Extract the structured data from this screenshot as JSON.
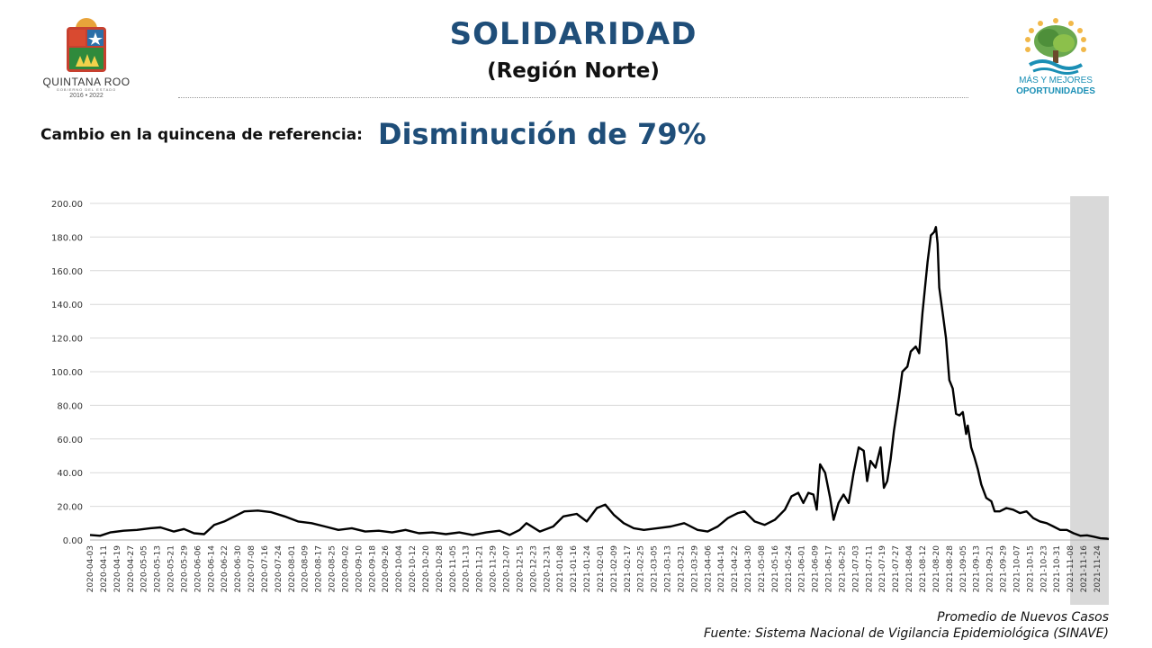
{
  "header": {
    "title": "SOLIDARIDAD",
    "subtitle": "(Región Norte)",
    "change_label": "Cambio en la quincena de referencia:",
    "change_value": "Disminución de 79%"
  },
  "logos": {
    "left": {
      "name": "QUINTANA ROO",
      "sub": "GOBIERNO DEL ESTADO",
      "years": "2016 • 2022"
    },
    "right": {
      "line1": "MÁS Y MEJORES",
      "line2": "OPORTUNIDADES"
    }
  },
  "footer": {
    "series_caption": "Promedio de Nuevos Casos",
    "source": "Fuente: Sistema Nacional de Vigilancia Epidemiológica (SINAVE)"
  },
  "colors": {
    "title": "#1f4e79",
    "line": "#000000",
    "shade": "#d9d9d9",
    "grid": "#d9d9d9"
  },
  "chart_data": {
    "type": "line",
    "ylim": [
      0,
      200
    ],
    "yticks": [
      "200.00",
      "180.00",
      "160.00",
      "140.00",
      "120.00",
      "100.00",
      "80.00",
      "60.00",
      "40.00",
      "20.00",
      "0.00"
    ],
    "xlim": [
      "2020-04-03",
      "2021-12-01"
    ],
    "shaded_from": "2021-11-08",
    "xticks": [
      "2020-04-03",
      "2020-04-11",
      "2020-04-19",
      "2020-04-27",
      "2020-05-05",
      "2020-05-13",
      "2020-05-21",
      "2020-05-29",
      "2020-06-06",
      "2020-06-14",
      "2020-06-22",
      "2020-06-30",
      "2020-07-08",
      "2020-07-16",
      "2020-07-24",
      "2020-08-01",
      "2020-08-09",
      "2020-08-17",
      "2020-08-25",
      "2020-09-02",
      "2020-09-10",
      "2020-09-18",
      "2020-09-26",
      "2020-10-04",
      "2020-10-12",
      "2020-10-20",
      "2020-10-28",
      "2020-11-05",
      "2020-11-13",
      "2020-11-21",
      "2020-11-29",
      "2020-12-07",
      "2020-12-15",
      "2020-12-23",
      "2020-12-31",
      "2021-01-08",
      "2021-01-16",
      "2021-01-24",
      "2021-02-01",
      "2021-02-09",
      "2021-02-17",
      "2021-02-25",
      "2021-03-05",
      "2021-03-13",
      "2021-03-21",
      "2021-03-29",
      "2021-04-06",
      "2021-04-14",
      "2021-04-22",
      "2021-04-30",
      "2021-05-08",
      "2021-05-16",
      "2021-05-24",
      "2021-06-01",
      "2021-06-09",
      "2021-06-17",
      "2021-06-25",
      "2021-07-03",
      "2021-07-11",
      "2021-07-19",
      "2021-07-27",
      "2021-08-04",
      "2021-08-12",
      "2021-08-20",
      "2021-08-28",
      "2021-09-05",
      "2021-09-13",
      "2021-09-21",
      "2021-09-29",
      "2021-10-07",
      "2021-10-15",
      "2021-10-23",
      "2021-10-31",
      "2021-11-08",
      "2021-11-16",
      "2021-11-24"
    ],
    "series": [
      {
        "name": "Promedio de Nuevos Casos",
        "points": [
          [
            "2020-04-03",
            3
          ],
          [
            "2020-04-09",
            2.5
          ],
          [
            "2020-04-15",
            4.5
          ],
          [
            "2020-04-23",
            5.5
          ],
          [
            "2020-05-01",
            6
          ],
          [
            "2020-05-09",
            7
          ],
          [
            "2020-05-15",
            7.5
          ],
          [
            "2020-05-23",
            5
          ],
          [
            "2020-05-29",
            6.5
          ],
          [
            "2020-06-04",
            4
          ],
          [
            "2020-06-10",
            3.5
          ],
          [
            "2020-06-16",
            9
          ],
          [
            "2020-06-22",
            11
          ],
          [
            "2020-06-28",
            14
          ],
          [
            "2020-07-04",
            17
          ],
          [
            "2020-07-12",
            17.5
          ],
          [
            "2020-07-20",
            16.5
          ],
          [
            "2020-07-28",
            14
          ],
          [
            "2020-08-05",
            11
          ],
          [
            "2020-08-13",
            10
          ],
          [
            "2020-08-21",
            8
          ],
          [
            "2020-08-29",
            6
          ],
          [
            "2020-09-06",
            7
          ],
          [
            "2020-09-14",
            5
          ],
          [
            "2020-09-22",
            5.5
          ],
          [
            "2020-09-30",
            4.5
          ],
          [
            "2020-10-08",
            6
          ],
          [
            "2020-10-16",
            4
          ],
          [
            "2020-10-24",
            4.5
          ],
          [
            "2020-11-01",
            3.5
          ],
          [
            "2020-11-09",
            4.5
          ],
          [
            "2020-11-17",
            3
          ],
          [
            "2020-11-25",
            4.5
          ],
          [
            "2020-12-03",
            5.5
          ],
          [
            "2020-12-09",
            3
          ],
          [
            "2020-12-15",
            6
          ],
          [
            "2020-12-19",
            10
          ],
          [
            "2020-12-27",
            5
          ],
          [
            "2021-01-04",
            8
          ],
          [
            "2021-01-10",
            14
          ],
          [
            "2021-01-18",
            15.5
          ],
          [
            "2021-01-24",
            11
          ],
          [
            "2021-01-30",
            19
          ],
          [
            "2021-02-04",
            21
          ],
          [
            "2021-02-09",
            15
          ],
          [
            "2021-02-15",
            10
          ],
          [
            "2021-02-21",
            7
          ],
          [
            "2021-02-27",
            6
          ],
          [
            "2021-03-07",
            7
          ],
          [
            "2021-03-15",
            8
          ],
          [
            "2021-03-23",
            10
          ],
          [
            "2021-03-31",
            6
          ],
          [
            "2021-04-06",
            5
          ],
          [
            "2021-04-12",
            8
          ],
          [
            "2021-04-18",
            13
          ],
          [
            "2021-04-24",
            16
          ],
          [
            "2021-04-28",
            17
          ],
          [
            "2021-05-04",
            11
          ],
          [
            "2021-05-10",
            9
          ],
          [
            "2021-05-16",
            12
          ],
          [
            "2021-05-22",
            18
          ],
          [
            "2021-05-26",
            26
          ],
          [
            "2021-05-30",
            28
          ],
          [
            "2021-06-02",
            22
          ],
          [
            "2021-06-05",
            28
          ],
          [
            "2021-06-08",
            27
          ],
          [
            "2021-06-10",
            18
          ],
          [
            "2021-06-12",
            45
          ],
          [
            "2021-06-15",
            40
          ],
          [
            "2021-06-18",
            25
          ],
          [
            "2021-06-20",
            12
          ],
          [
            "2021-06-23",
            22
          ],
          [
            "2021-06-26",
            27
          ],
          [
            "2021-06-29",
            22
          ],
          [
            "2021-07-02",
            40
          ],
          [
            "2021-07-05",
            55
          ],
          [
            "2021-07-08",
            53
          ],
          [
            "2021-07-10",
            35
          ],
          [
            "2021-07-12",
            47
          ],
          [
            "2021-07-15",
            43
          ],
          [
            "2021-07-18",
            55
          ],
          [
            "2021-07-20",
            31
          ],
          [
            "2021-07-22",
            35
          ],
          [
            "2021-07-24",
            48
          ],
          [
            "2021-07-26",
            65
          ],
          [
            "2021-07-29",
            85
          ],
          [
            "2021-07-31",
            100
          ],
          [
            "2021-08-03",
            103
          ],
          [
            "2021-08-05",
            112
          ],
          [
            "2021-08-08",
            115
          ],
          [
            "2021-08-10",
            111
          ],
          [
            "2021-08-12",
            135
          ],
          [
            "2021-08-15",
            165
          ],
          [
            "2021-08-17",
            181
          ],
          [
            "2021-08-19",
            183
          ],
          [
            "2021-08-20",
            186
          ],
          [
            "2021-08-21",
            176
          ],
          [
            "2021-08-22",
            150
          ],
          [
            "2021-08-24",
            135
          ],
          [
            "2021-08-26",
            120
          ],
          [
            "2021-08-28",
            95
          ],
          [
            "2021-08-30",
            90
          ],
          [
            "2021-09-01",
            75
          ],
          [
            "2021-09-03",
            74
          ],
          [
            "2021-09-05",
            76
          ],
          [
            "2021-09-07",
            63
          ],
          [
            "2021-09-08",
            68
          ],
          [
            "2021-09-10",
            55
          ],
          [
            "2021-09-12",
            49
          ],
          [
            "2021-09-14",
            42
          ],
          [
            "2021-09-16",
            33
          ],
          [
            "2021-09-19",
            25
          ],
          [
            "2021-09-22",
            23
          ],
          [
            "2021-09-24",
            17
          ],
          [
            "2021-09-27",
            17
          ],
          [
            "2021-10-01",
            19
          ],
          [
            "2021-10-05",
            18
          ],
          [
            "2021-10-09",
            16
          ],
          [
            "2021-10-13",
            17
          ],
          [
            "2021-10-17",
            13
          ],
          [
            "2021-10-21",
            11
          ],
          [
            "2021-10-25",
            10
          ],
          [
            "2021-10-29",
            8
          ],
          [
            "2021-11-02",
            6
          ],
          [
            "2021-11-06",
            6
          ],
          [
            "2021-11-10",
            4
          ],
          [
            "2021-11-14",
            2.5
          ],
          [
            "2021-11-18",
            2.8
          ],
          [
            "2021-11-22",
            2
          ],
          [
            "2021-11-26",
            1
          ],
          [
            "2021-11-30",
            0.8
          ],
          [
            "2021-12-01",
            0.6
          ]
        ]
      }
    ]
  }
}
